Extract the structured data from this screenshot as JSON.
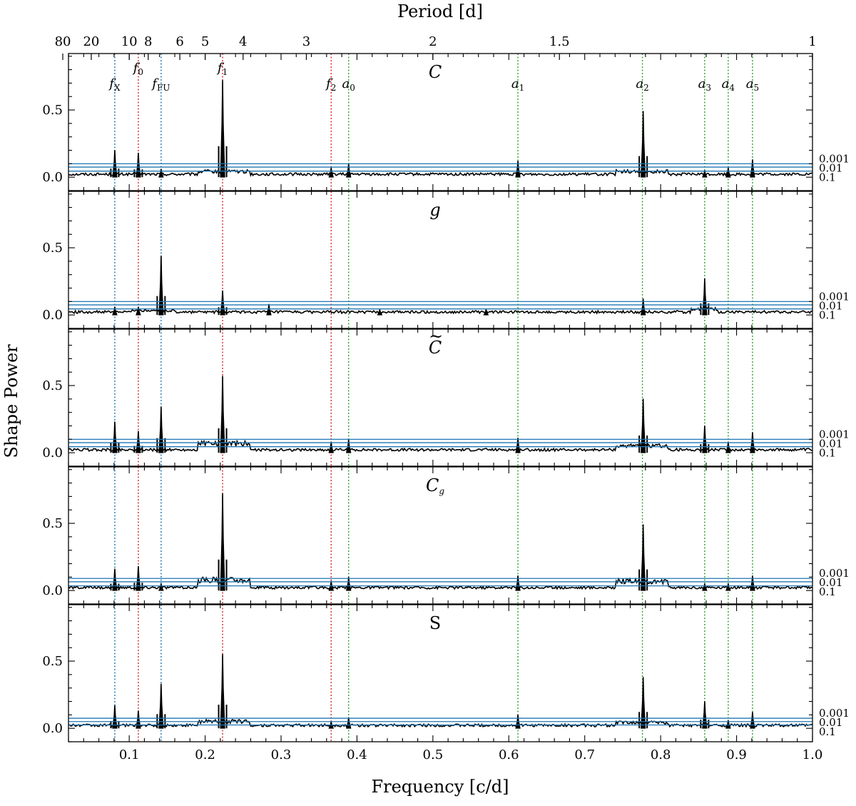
{
  "chart_data": {
    "type": "line",
    "title": "",
    "xlabel": "Frequency [c/d]",
    "ylabel": "Shape Power",
    "top_xlabel": "Period [d]",
    "xlim": [
      0.02,
      1.0
    ],
    "ylim": [
      -0.1,
      0.92
    ],
    "x_ticks": [
      {
        "value": 0.1,
        "label": "0.1"
      },
      {
        "value": 0.2,
        "label": "0.2"
      },
      {
        "value": 0.3,
        "label": "0.3"
      },
      {
        "value": 0.4,
        "label": "0.4"
      },
      {
        "value": 0.5,
        "label": "0.5"
      },
      {
        "value": 0.6,
        "label": "0.6"
      },
      {
        "value": 0.7,
        "label": "0.7"
      },
      {
        "value": 0.8,
        "label": "0.8"
      },
      {
        "value": 0.9,
        "label": "0.9"
      },
      {
        "value": 1.0,
        "label": "1.0"
      }
    ],
    "y_ticks": [
      {
        "value": 0.0,
        "label": "0.0"
      },
      {
        "value": 0.5,
        "label": "0.5"
      }
    ],
    "period_ticks": [
      {
        "period": 80,
        "label": "80"
      },
      {
        "period": 20,
        "label": "20"
      },
      {
        "period": 10,
        "label": "10"
      },
      {
        "period": 8,
        "label": "8"
      },
      {
        "period": 6,
        "label": "6"
      },
      {
        "period": 5,
        "label": "5"
      },
      {
        "period": 4,
        "label": "4"
      },
      {
        "period": 3,
        "label": "3"
      },
      {
        "period": 2,
        "label": "2"
      },
      {
        "period": 1.5,
        "label": "1.5"
      },
      {
        "period": 1,
        "label": "1"
      }
    ],
    "significance_levels": [
      {
        "label": "0.001"
      },
      {
        "label": "0.01"
      },
      {
        "label": "0.1"
      }
    ],
    "frequency_markers": [
      {
        "name": "fx",
        "base": "f",
        "sub": "X",
        "freq": 0.081,
        "color": "#1f77b4"
      },
      {
        "name": "f0",
        "base": "f",
        "sub": "0",
        "freq": 0.112,
        "color": "#d62728"
      },
      {
        "name": "ffu",
        "base": "f",
        "sub": "FU",
        "freq": 0.142,
        "color": "#1f77b4"
      },
      {
        "name": "f1",
        "base": "f",
        "sub": "1",
        "freq": 0.223,
        "color": "#d62728"
      },
      {
        "name": "f2",
        "base": "f",
        "sub": "2",
        "freq": 0.366,
        "color": "#d62728"
      },
      {
        "name": "a0",
        "base": "a",
        "sub": "0",
        "freq": 0.389,
        "color": "#2ca02c"
      },
      {
        "name": "a1",
        "base": "a",
        "sub": "1",
        "freq": 0.612,
        "color": "#2ca02c"
      },
      {
        "name": "a2",
        "base": "a",
        "sub": "2",
        "freq": 0.776,
        "color": "#2ca02c"
      },
      {
        "name": "a3",
        "base": "a",
        "sub": "3",
        "freq": 0.858,
        "color": "#2ca02c"
      },
      {
        "name": "a4",
        "base": "a",
        "sub": "4",
        "freq": 0.889,
        "color": "#2ca02c"
      },
      {
        "name": "a5",
        "base": "a",
        "sub": "5",
        "freq": 0.921,
        "color": "#2ca02c"
      }
    ],
    "panels": [
      {
        "name": "C",
        "label": {
          "base": "C",
          "sub": "",
          "tilde": false,
          "italic": true
        },
        "sig_values": [
          0.1,
          0.075,
          0.045
        ],
        "hump": {
          "from": 0.19,
          "to": 0.26,
          "level": 0.05
        },
        "hump2": {
          "from": 0.74,
          "to": 0.81,
          "level": 0.05
        },
        "peaks": [
          {
            "freq": 0.081,
            "height": 0.2
          },
          {
            "freq": 0.112,
            "height": 0.18
          },
          {
            "freq": 0.142,
            "height": 0.06
          },
          {
            "freq": 0.223,
            "height": 0.72
          },
          {
            "freq": 0.366,
            "height": 0.07
          },
          {
            "freq": 0.389,
            "height": 0.1
          },
          {
            "freq": 0.612,
            "height": 0.12
          },
          {
            "freq": 0.777,
            "height": 0.49
          },
          {
            "freq": 0.858,
            "height": 0.05
          },
          {
            "freq": 0.889,
            "height": 0.07
          },
          {
            "freq": 0.921,
            "height": 0.13
          }
        ]
      },
      {
        "name": "g",
        "label": {
          "base": "g",
          "sub": "",
          "tilde": false,
          "italic": true
        },
        "sig_values": [
          0.1,
          0.075,
          0.045
        ],
        "hump": {
          "from": 0.1,
          "to": 0.16,
          "level": 0.04
        },
        "hump2": {
          "from": 0.84,
          "to": 0.875,
          "level": 0.05
        },
        "peaks": [
          {
            "freq": 0.081,
            "height": 0.06
          },
          {
            "freq": 0.112,
            "height": 0.06
          },
          {
            "freq": 0.142,
            "height": 0.44
          },
          {
            "freq": 0.223,
            "height": 0.18
          },
          {
            "freq": 0.284,
            "height": 0.08
          },
          {
            "freq": 0.43,
            "height": 0.04
          },
          {
            "freq": 0.57,
            "height": 0.04
          },
          {
            "freq": 0.777,
            "height": 0.12
          },
          {
            "freq": 0.858,
            "height": 0.27
          }
        ]
      },
      {
        "name": "C-tilde",
        "label": {
          "base": "C",
          "sub": "",
          "tilde": true,
          "italic": true
        },
        "sig_values": [
          0.1,
          0.075,
          0.045
        ],
        "hump": {
          "from": 0.19,
          "to": 0.26,
          "level": 0.08
        },
        "hump2": {
          "from": 0.74,
          "to": 0.81,
          "level": 0.06
        },
        "peaks": [
          {
            "freq": 0.081,
            "height": 0.23
          },
          {
            "freq": 0.112,
            "height": 0.16
          },
          {
            "freq": 0.142,
            "height": 0.34
          },
          {
            "freq": 0.223,
            "height": 0.57
          },
          {
            "freq": 0.366,
            "height": 0.08
          },
          {
            "freq": 0.389,
            "height": 0.1
          },
          {
            "freq": 0.612,
            "height": 0.11
          },
          {
            "freq": 0.777,
            "height": 0.4
          },
          {
            "freq": 0.858,
            "height": 0.2
          },
          {
            "freq": 0.889,
            "height": 0.08
          },
          {
            "freq": 0.921,
            "height": 0.15
          }
        ]
      },
      {
        "name": "C-g",
        "label": {
          "base": "C",
          "sub": "g",
          "tilde": false,
          "italic": true
        },
        "sig_values": [
          0.09,
          0.065,
          0.035
        ],
        "hump": {
          "from": 0.19,
          "to": 0.26,
          "level": 0.09
        },
        "hump2": {
          "from": 0.74,
          "to": 0.81,
          "level": 0.08
        },
        "peaks": [
          {
            "freq": 0.081,
            "height": 0.16
          },
          {
            "freq": 0.112,
            "height": 0.18
          },
          {
            "freq": 0.142,
            "height": 0.05
          },
          {
            "freq": 0.223,
            "height": 0.72
          },
          {
            "freq": 0.366,
            "height": 0.07
          },
          {
            "freq": 0.389,
            "height": 0.1
          },
          {
            "freq": 0.612,
            "height": 0.11
          },
          {
            "freq": 0.777,
            "height": 0.49
          },
          {
            "freq": 0.858,
            "height": 0.05
          },
          {
            "freq": 0.889,
            "height": 0.05
          },
          {
            "freq": 0.921,
            "height": 0.11
          }
        ]
      },
      {
        "name": "S",
        "label": {
          "base": "S",
          "sub": "",
          "tilde": false,
          "italic": false
        },
        "sig_values": [
          0.075,
          0.05,
          0.025
        ],
        "hump": {
          "from": 0.19,
          "to": 0.26,
          "level": 0.06
        },
        "hump2": {
          "from": 0.74,
          "to": 0.81,
          "level": 0.05
        },
        "peaks": [
          {
            "freq": 0.081,
            "height": 0.17
          },
          {
            "freq": 0.112,
            "height": 0.13
          },
          {
            "freq": 0.142,
            "height": 0.33
          },
          {
            "freq": 0.223,
            "height": 0.55
          },
          {
            "freq": 0.366,
            "height": 0.05
          },
          {
            "freq": 0.389,
            "height": 0.08
          },
          {
            "freq": 0.612,
            "height": 0.1
          },
          {
            "freq": 0.777,
            "height": 0.38
          },
          {
            "freq": 0.858,
            "height": 0.2
          },
          {
            "freq": 0.889,
            "height": 0.06
          },
          {
            "freq": 0.921,
            "height": 0.12
          }
        ]
      }
    ]
  }
}
